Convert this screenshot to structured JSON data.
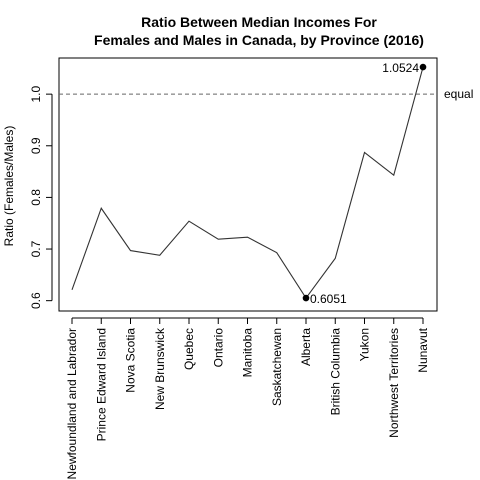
{
  "chart_data": {
    "type": "line",
    "title_lines": [
      "Ratio Between Median Incomes For",
      "Females and Males in Canada, by Province (2016)"
    ],
    "xlabel": "",
    "ylabel": "Ratio (Females/Males)",
    "categories": [
      "Newfoundland and Labrador",
      "Prince Edward Island",
      "Nova Scotia",
      "New Brunswick",
      "Quebec",
      "Ontario",
      "Manitoba",
      "Saskatchewan",
      "Alberta",
      "British Columbia",
      "Yukon",
      "Northwest Territories",
      "Nunavut"
    ],
    "values": [
      0.621,
      0.779,
      0.697,
      0.688,
      0.754,
      0.719,
      0.723,
      0.693,
      0.6051,
      0.682,
      0.887,
      0.843,
      1.0524
    ],
    "yticks": [
      0.6,
      0.7,
      0.8,
      0.9,
      1.0
    ],
    "ytick_labels": [
      "0.6",
      "0.7",
      "0.8",
      "0.9",
      "1.0"
    ],
    "ylim": [
      0.58,
      1.07
    ],
    "reference_line": {
      "value": 1.0,
      "label": "equal",
      "style": "dashed"
    },
    "highlighted_points": [
      {
        "category": "Alberta",
        "value": 0.6051,
        "label": "0.6051",
        "label_side": "right"
      },
      {
        "category": "Nunavut",
        "value": 1.0524,
        "label": "1.0524",
        "label_side": "left"
      }
    ],
    "grid": false,
    "legend": "none",
    "line_color": "#333333",
    "reference_color": "#666666"
  }
}
